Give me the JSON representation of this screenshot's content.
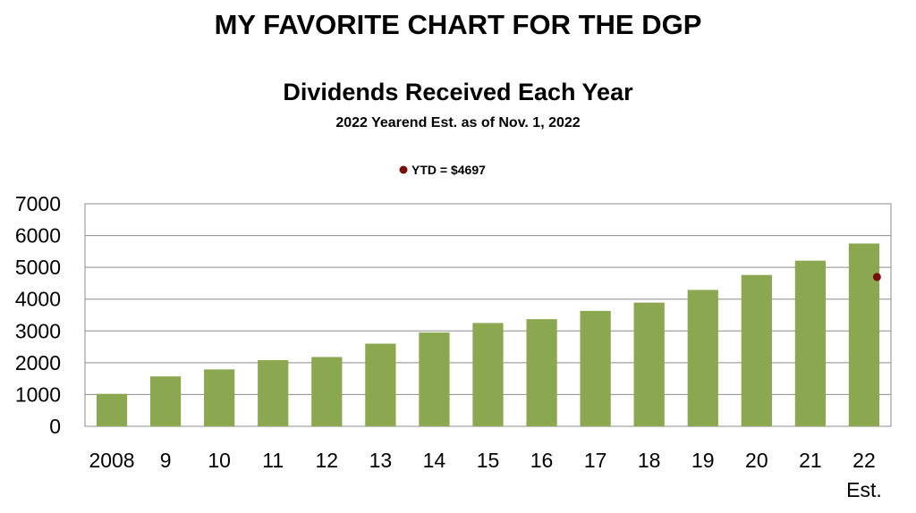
{
  "header": {
    "title": "MY FAVORITE CHART FOR THE DGP"
  },
  "chart_data": {
    "type": "bar",
    "title": "Dividends Received Each Year",
    "subtitle": "2022 Yearend Est. as of Nov. 1, 2022",
    "categories": [
      "2008",
      "9",
      "10",
      "11",
      "12",
      "13",
      "14",
      "15",
      "16",
      "17",
      "18",
      "19",
      "20",
      "21",
      "22"
    ],
    "category_sublabels": [
      "",
      "",
      "",
      "",
      "",
      "",
      "",
      "",
      "",
      "",
      "",
      "",
      "",
      "",
      "Est."
    ],
    "values": [
      1020,
      1570,
      1790,
      2080,
      2180,
      2600,
      2950,
      3250,
      3370,
      3630,
      3890,
      4290,
      4760,
      5210,
      5750
    ],
    "bar_color": "#8BA851",
    "ylim": [
      0,
      7000
    ],
    "yticks": [
      0,
      1000,
      2000,
      3000,
      4000,
      5000,
      6000,
      7000
    ],
    "grid": true,
    "points": [
      {
        "category": "22",
        "value": 4697,
        "label": "YTD = $4697",
        "color": "#7B0C0C"
      }
    ],
    "legend": {
      "position": "top-center",
      "entries": [
        "YTD = $4697"
      ]
    }
  }
}
